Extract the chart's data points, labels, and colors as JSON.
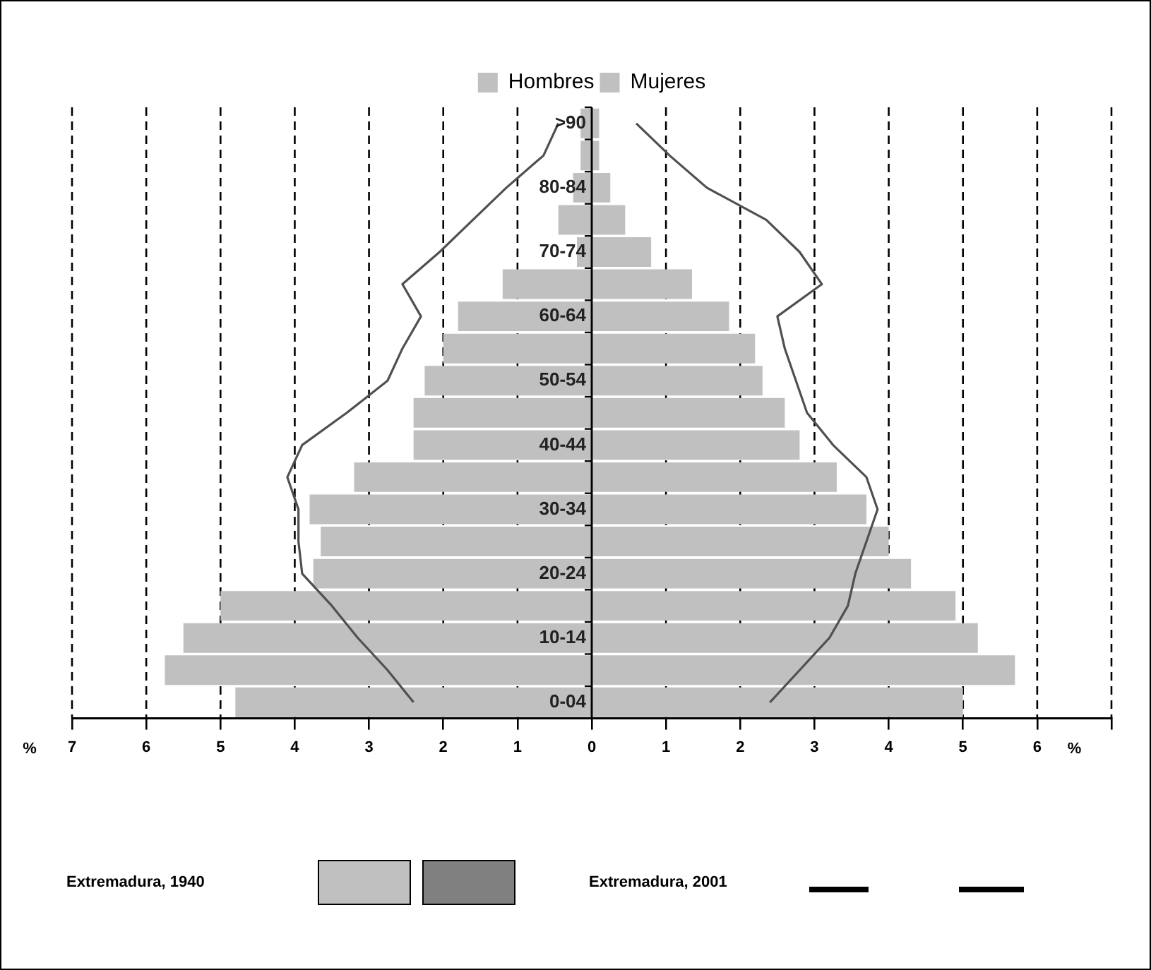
{
  "chart_data": {
    "type": "bar",
    "orientation": "horizontal",
    "stacked": true,
    "categories": [
      ">90",
      null,
      "80-84",
      null,
      "70-74",
      null,
      "60-64",
      null,
      "50-54",
      null,
      "40-44",
      null,
      "30-34",
      null,
      "20-24",
      null,
      "10-14",
      null,
      "0-04"
    ],
    "series": [
      {
        "name": "Hombres",
        "color": "#c0c0c0",
        "values": [
          -0.15,
          -0.15,
          -0.25,
          -0.45,
          -0.2,
          -1.2,
          -1.8,
          -2.0,
          -2.25,
          -2.4,
          -2.4,
          -3.2,
          -3.8,
          -3.65,
          -3.75,
          -5.0,
          -5.5,
          -5.75,
          -4.8
        ]
      },
      {
        "name": "Mujeres",
        "color": "#c0c0c0",
        "values": [
          0.1,
          0.1,
          0.25,
          0.45,
          0.8,
          1.35,
          1.85,
          2.2,
          2.3,
          2.6,
          2.8,
          3.3,
          3.7,
          4.0,
          4.3,
          4.9,
          5.2,
          5.7,
          5.0
        ]
      },
      {
        "type": "line",
        "color": "#505050",
        "values": [
          -0.45,
          -0.65,
          -1.15,
          -1.6,
          -2.05,
          -2.55,
          -2.3,
          -2.55,
          -2.75,
          -3.3,
          -3.9,
          -4.1,
          -3.95,
          -3.95,
          -3.9,
          -3.5,
          -3.15,
          -2.75,
          -2.4
        ]
      },
      {
        "type": "line",
        "color": "#505050",
        "values": [
          0.6,
          1.05,
          1.55,
          2.35,
          2.8,
          3.1,
          2.5,
          2.6,
          2.75,
          2.9,
          3.25,
          3.7,
          3.85,
          3.7,
          3.55,
          3.45,
          3.2,
          2.8,
          2.4
        ]
      }
    ],
    "xlabel": "%",
    "xlim": [
      -7,
      7
    ],
    "xticks": [
      {
        "value": -7,
        "label": "7"
      },
      {
        "value": -6,
        "label": "6"
      },
      {
        "value": -5,
        "label": "5"
      },
      {
        "value": -4,
        "label": "4"
      },
      {
        "value": -3,
        "label": "3"
      },
      {
        "value": -2,
        "label": "2"
      },
      {
        "value": -1,
        "label": "1"
      },
      0,
      1,
      2,
      3,
      4,
      5,
      6,
      {
        "value": 7,
        "label": null
      }
    ],
    "grid": "x",
    "legend": "top",
    "marker": "none",
    "annotations": [
      "Extremadura, 1940",
      "Extremadura, 2001"
    ]
  }
}
